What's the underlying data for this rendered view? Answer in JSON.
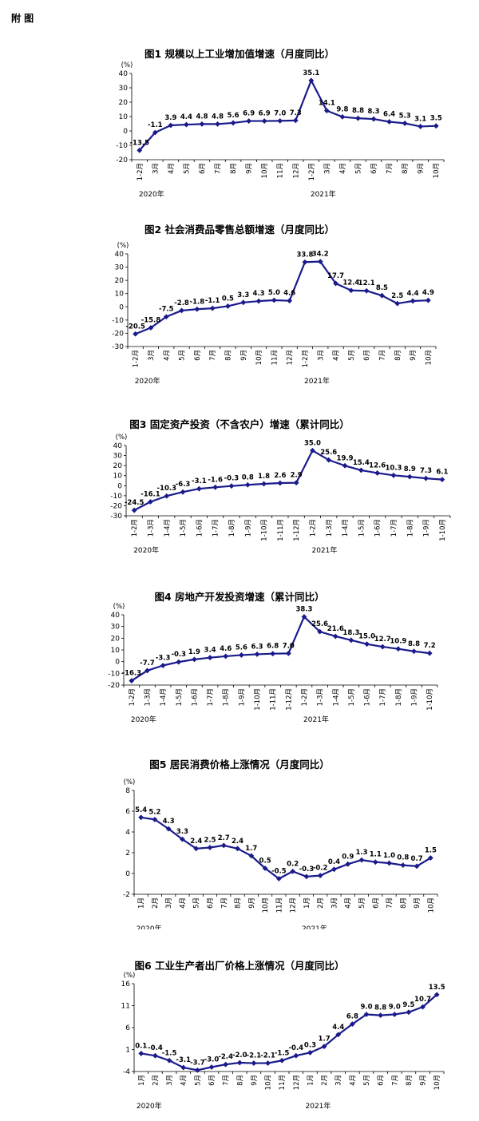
{
  "appendix_label": "附 图",
  "chart_data": [
    {
      "type": "line",
      "title": "图1  规模以上工业增加值增速（月度同比）",
      "unit": "(%)",
      "ylim": [
        -20,
        40
      ],
      "yticks": [
        40,
        30,
        20,
        10,
        0,
        -10,
        -20
      ],
      "categories": [
        "1-2月",
        "3月",
        "4月",
        "5月",
        "6月",
        "7月",
        "8月",
        "9月",
        "10月",
        "11月",
        "12月",
        "1-2月",
        "3月",
        "4月",
        "5月",
        "6月",
        "7月",
        "8月",
        "9月",
        "10月"
      ],
      "values": [
        -13.5,
        -1.1,
        3.9,
        4.4,
        4.8,
        4.8,
        5.6,
        6.9,
        6.9,
        7.0,
        7.3,
        35.1,
        14.1,
        9.8,
        8.8,
        8.3,
        6.4,
        5.3,
        3.1,
        3.5
      ],
      "labels": [
        "-13.5",
        "-1.1",
        "3.9",
        "4.4",
        "4.8",
        "4.8",
        "5.6",
        "6.9",
        "6.9",
        "7.0",
        "7.3",
        "35.1",
        "14.1",
        "9.8",
        "8.8",
        "8.3",
        "6.4",
        "5.3",
        "3.1",
        "3.5"
      ],
      "years": [
        {
          "label": "2020年",
          "index": 0
        },
        {
          "label": "2021年",
          "index": 11
        }
      ]
    },
    {
      "type": "line",
      "title": "图2  社会消费品零售总额增速（月度同比）",
      "unit": "(%)",
      "ylim": [
        -30,
        40
      ],
      "yticks": [
        40,
        30,
        20,
        10,
        0,
        -10,
        -20,
        -30
      ],
      "categories": [
        "1-2月",
        "3月",
        "4月",
        "5月",
        "6月",
        "7月",
        "8月",
        "9月",
        "10月",
        "11月",
        "12月",
        "1-2月",
        "3月",
        "4月",
        "5月",
        "6月",
        "7月",
        "8月",
        "9月",
        "10月"
      ],
      "values": [
        -20.5,
        -15.8,
        -7.5,
        -2.8,
        -1.8,
        -1.1,
        0.5,
        3.3,
        4.3,
        5.0,
        4.6,
        33.8,
        34.2,
        17.7,
        12.4,
        12.1,
        8.5,
        2.5,
        4.4,
        4.9
      ],
      "labels": [
        "-20.5",
        "-15.8",
        "-7.5",
        "-2.8",
        "-1.8",
        "-1.1",
        "0.5",
        "3.3",
        "4.3",
        "5.0",
        "4.6",
        "33.8",
        "34.2",
        "17.7",
        "12.4",
        "12.1",
        "8.5",
        "2.5",
        "4.4",
        "4.9"
      ],
      "years": [
        {
          "label": "2020年",
          "index": 0
        },
        {
          "label": "2021年",
          "index": 11
        }
      ]
    },
    {
      "type": "line",
      "title": "图3  固定资产投资（不含农户）增速（累计同比）",
      "unit": "(%)",
      "ylim": [
        -30,
        40
      ],
      "yticks": [
        40,
        30,
        20,
        10,
        0,
        -10,
        -20,
        -30
      ],
      "categories": [
        "1-2月",
        "1-3月",
        "1-4月",
        "1-5月",
        "1-6月",
        "1-7月",
        "1-8月",
        "1-9月",
        "1-10月",
        "1-11月",
        "1-12月",
        "1-2月",
        "1-3月",
        "1-4月",
        "1-5月",
        "1-6月",
        "1-7月",
        "1-8月",
        "1-9月",
        "1-10月"
      ],
      "values": [
        -24.5,
        -16.1,
        -10.3,
        -6.3,
        -3.1,
        -1.6,
        -0.3,
        0.8,
        1.8,
        2.6,
        2.9,
        35.0,
        25.6,
        19.9,
        15.4,
        12.6,
        10.3,
        8.9,
        7.3,
        6.1
      ],
      "labels": [
        "-24.5",
        "-16.1",
        "-10.3",
        "-6.3",
        "-3.1",
        "-1.6",
        "-0.3",
        "0.8",
        "1.8",
        "2.6",
        "2.9",
        "35.0",
        "25.6",
        "19.9",
        "15.4",
        "12.6",
        "10.3",
        "8.9",
        "7.3",
        "6.1"
      ],
      "years": [
        {
          "label": "2020年",
          "index": 0
        },
        {
          "label": "2021年",
          "index": 11
        }
      ]
    },
    {
      "type": "line",
      "title": "图4  房地产开发投资增速（累计同比）",
      "unit": "(%)",
      "ylim": [
        -20,
        40
      ],
      "yticks": [
        40,
        30,
        20,
        10,
        0,
        -10,
        -20
      ],
      "categories": [
        "1-2月",
        "1-3月",
        "1-4月",
        "1-5月",
        "1-6月",
        "1-7月",
        "1-8月",
        "1-9月",
        "1-10月",
        "1-11月",
        "1-12月",
        "1-2月",
        "1-3月",
        "1-4月",
        "1-5月",
        "1-6月",
        "1-7月",
        "1-8月",
        "1-9月",
        "1-10月"
      ],
      "values": [
        -16.3,
        -7.7,
        -3.3,
        -0.3,
        1.9,
        3.4,
        4.6,
        5.6,
        6.3,
        6.8,
        7.0,
        38.3,
        25.6,
        21.6,
        18.3,
        15.0,
        12.7,
        10.9,
        8.8,
        7.2
      ],
      "labels": [
        "-16.3",
        "-7.7",
        "-3.3",
        "-0.3",
        "1.9",
        "3.4",
        "4.6",
        "5.6",
        "6.3",
        "6.8",
        "7.0",
        "38.3",
        "25.6",
        "21.6",
        "18.3",
        "15.0",
        "12.7",
        "10.9",
        "8.8",
        "7.2"
      ],
      "years": [
        {
          "label": "2020年",
          "index": 0
        },
        {
          "label": "2021年",
          "index": 11
        }
      ]
    },
    {
      "type": "line",
      "title": "图5  居民消费价格上涨情况（月度同比）",
      "unit": "(%)",
      "ylim": [
        -2,
        8
      ],
      "yticks": [
        8,
        6,
        4,
        2,
        0,
        -2
      ],
      "categories": [
        "1月",
        "2月",
        "3月",
        "4月",
        "5月",
        "6月",
        "7月",
        "8月",
        "9月",
        "10月",
        "11月",
        "12月",
        "1月",
        "2月",
        "3月",
        "4月",
        "5月",
        "6月",
        "7月",
        "8月",
        "9月",
        "10月"
      ],
      "values": [
        5.4,
        5.2,
        4.3,
        3.3,
        2.4,
        2.5,
        2.7,
        2.4,
        1.7,
        0.5,
        -0.5,
        0.2,
        -0.3,
        -0.2,
        0.4,
        0.9,
        1.3,
        1.1,
        1.0,
        0.8,
        0.7,
        1.5
      ],
      "labels": [
        "5.4",
        "5.2",
        "4.3",
        "3.3",
        "2.4",
        "2.5",
        "2.7",
        "2.4",
        "1.7",
        "0.5",
        "-0.5",
        "0.2",
        "-0.3",
        "-0.2",
        "0.4",
        "0.9",
        "1.3",
        "1.1",
        "1.0",
        "0.8",
        "0.7",
        "1.5"
      ],
      "years": [
        {
          "label": "2020年",
          "index": 0
        },
        {
          "label": "2021年",
          "index": 12
        }
      ]
    },
    {
      "type": "line",
      "title": "图6  工业生产者出厂价格上涨情况（月度同比）",
      "unit": "(%)",
      "ylim": [
        -4,
        16
      ],
      "yticks": [
        16,
        11,
        6,
        1,
        -4
      ],
      "categories": [
        "1月",
        "2月",
        "3月",
        "4月",
        "5月",
        "6月",
        "7月",
        "8月",
        "9月",
        "10月",
        "11月",
        "12月",
        "1月",
        "2月",
        "3月",
        "4月",
        "5月",
        "6月",
        "7月",
        "8月",
        "9月",
        "10月"
      ],
      "values": [
        0.1,
        -0.4,
        -1.5,
        -3.1,
        -3.7,
        -3.0,
        -2.4,
        -2.0,
        -2.1,
        -2.1,
        -1.5,
        -0.4,
        0.3,
        1.7,
        4.4,
        6.8,
        9.0,
        8.8,
        9.0,
        9.5,
        10.7,
        13.5
      ],
      "labels": [
        "0.1",
        "-0.4",
        "-1.5",
        "-3.1",
        "-3.7",
        "-3.0",
        "-2.4",
        "-2.0",
        "-2.1",
        "-2.1",
        "-1.5",
        "-0.4",
        "0.3",
        "1.7",
        "4.4",
        "6.8",
        "9.0",
        "8.8",
        "9.0",
        "9.5",
        "10.7",
        "13.5"
      ],
      "years": [
        {
          "label": "2020年",
          "index": 0
        },
        {
          "label": "2021年",
          "index": 12
        }
      ]
    }
  ]
}
